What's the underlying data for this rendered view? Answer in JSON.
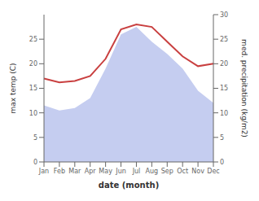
{
  "chart_data": {
    "type": "line",
    "xlabel": "date (month)",
    "ylabel": "max temp (C)",
    "y2label": "med. precipitation (kg/m2)",
    "categories": [
      "Jan",
      "Feb",
      "Mar",
      "Apr",
      "May",
      "Jun",
      "Jul",
      "Aug",
      "Sep",
      "Oct",
      "Nov",
      "Dec"
    ],
    "series": [
      {
        "type": "area",
        "color": "#c5cdf0",
        "axis": "y2",
        "values": [
          11.5,
          10.5,
          11.0,
          13.0,
          19.0,
          26.0,
          27.5,
          24.5,
          22.0,
          19.0,
          14.5,
          12.0
        ]
      },
      {
        "type": "line",
        "color": "#c94040",
        "values": [
          17.0,
          16.2,
          16.5,
          17.5,
          21.0,
          27.0,
          28.0,
          27.5,
          24.5,
          21.5,
          19.5,
          20.0
        ]
      }
    ],
    "ylim": [
      0,
      30
    ],
    "yticks": [
      0,
      5,
      10,
      15,
      20,
      25
    ],
    "y2lim": [
      0,
      30
    ],
    "y2ticks": [
      0,
      5,
      10,
      15,
      20,
      25,
      30
    ]
  }
}
